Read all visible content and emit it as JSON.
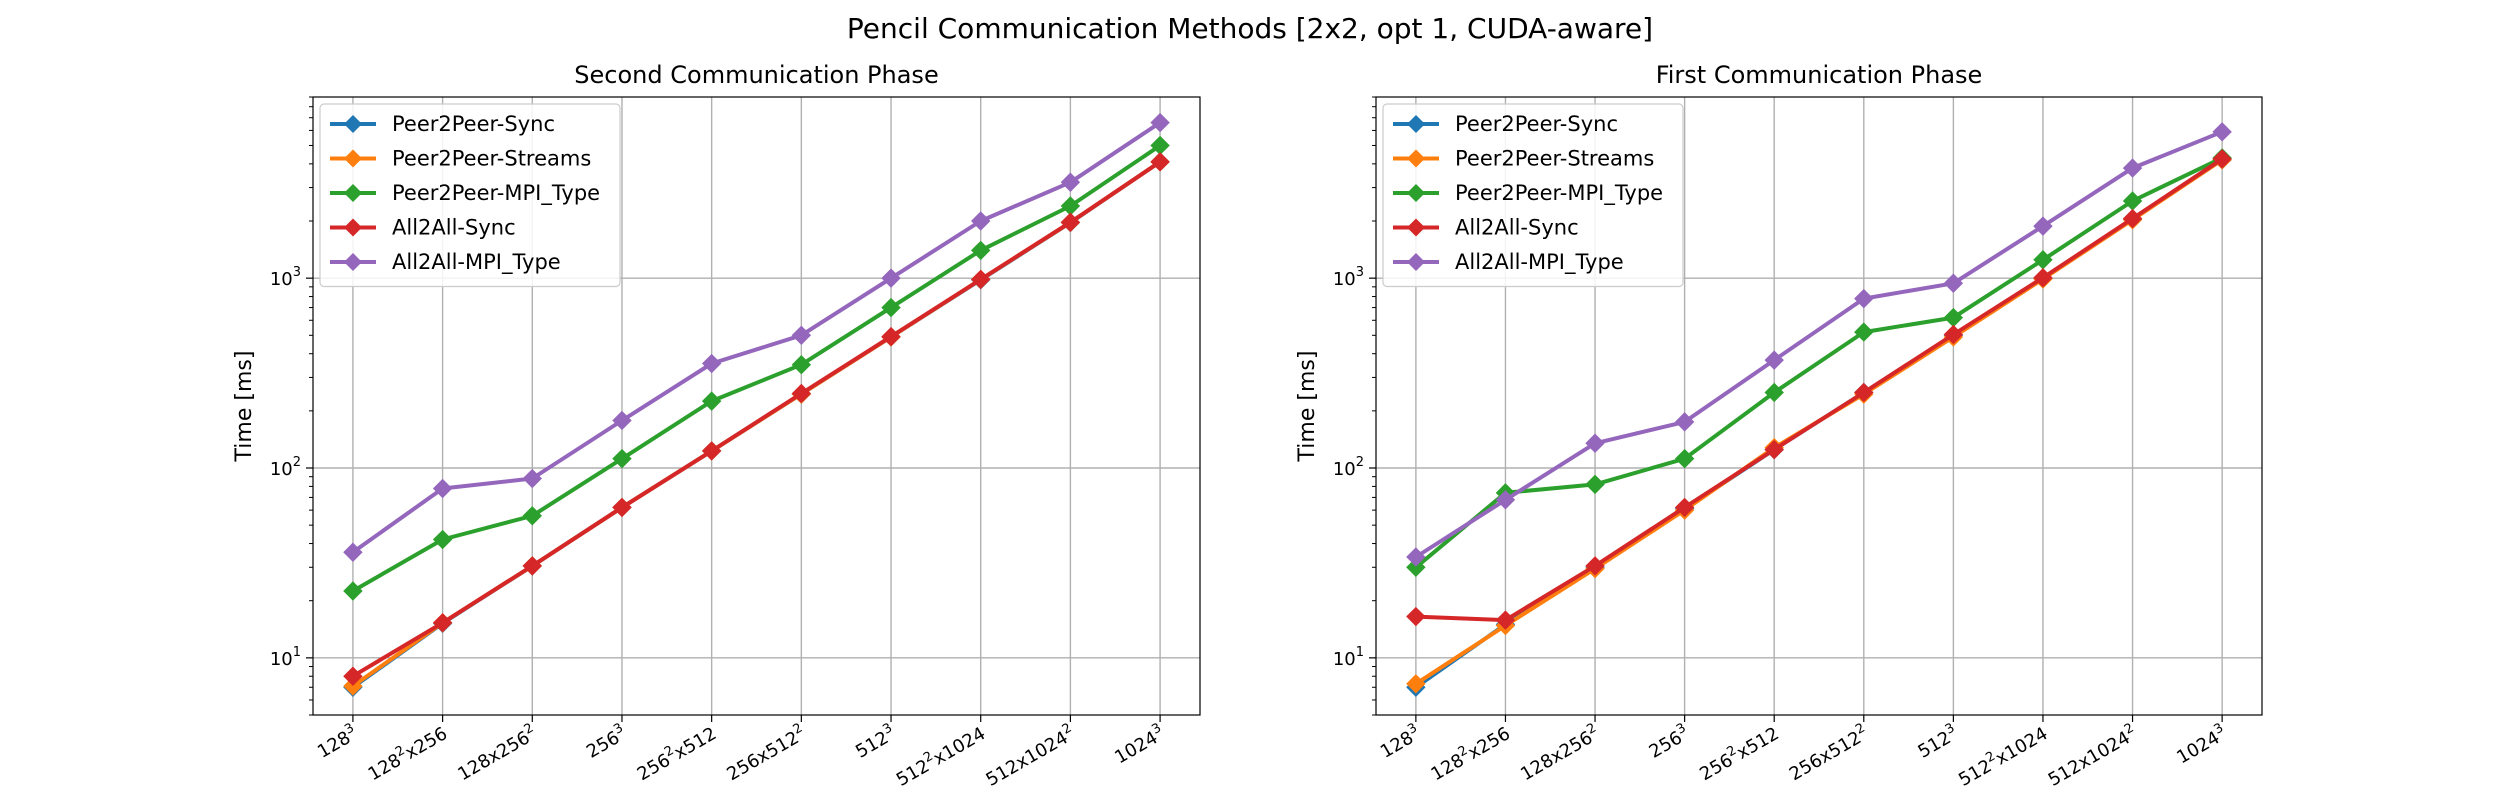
{
  "suptitle": "Pencil Communication Methods [2x2, opt 1, CUDA-aware]",
  "chart_data": [
    {
      "type": "line",
      "title": "Second Communication Phase",
      "ylabel": "Time [ms]",
      "xlabel": "",
      "yscale": "log",
      "ylim": [
        5,
        9000
      ],
      "yticks": [
        10,
        100,
        1000
      ],
      "ytick_labels": [
        [
          "10",
          "1"
        ],
        [
          "10",
          "2"
        ],
        [
          "10",
          "3"
        ]
      ],
      "grid": true,
      "legend": "upper-left",
      "categories": [
        "128^3",
        "128^2x256",
        "128x256^2",
        "256^3",
        "256^2x512",
        "256x512^2",
        "512^3",
        "512^2x1024",
        "512x1024^2",
        "1024^3"
      ],
      "series": [
        {
          "name": "Peer2Peer-Sync",
          "color": "#1f77b4",
          "values": [
            7.0,
            15.2,
            30.5,
            62,
            123,
            245,
            490,
            980,
            1960,
            4100
          ]
        },
        {
          "name": "Peer2Peer-Streams",
          "color": "#ff7f0e",
          "values": [
            7.1,
            15.3,
            30.5,
            62,
            123,
            245,
            490,
            985,
            1965,
            4100
          ]
        },
        {
          "name": "Peer2Peer-MPI_Type",
          "color": "#2ca02c",
          "values": [
            22.5,
            42,
            56,
            112,
            225,
            350,
            700,
            1400,
            2400,
            5000
          ]
        },
        {
          "name": "All2All-Sync",
          "color": "#d62728",
          "values": [
            8.0,
            15.3,
            30.5,
            62,
            123,
            247,
            492,
            985,
            1970,
            4100
          ]
        },
        {
          "name": "All2All-MPI_Type",
          "color": "#9467bd",
          "values": [
            36,
            78,
            88,
            178,
            355,
            500,
            1000,
            2000,
            3200,
            6600
          ]
        }
      ]
    },
    {
      "type": "line",
      "title": "First Communication Phase",
      "ylabel": "Time [ms]",
      "xlabel": "",
      "yscale": "log",
      "ylim": [
        5,
        9000
      ],
      "yticks": [
        10,
        100,
        1000
      ],
      "ytick_labels": [
        [
          "10",
          "1"
        ],
        [
          "10",
          "2"
        ],
        [
          "10",
          "3"
        ]
      ],
      "grid": true,
      "legend": "upper-left",
      "categories": [
        "128^3",
        "128^2x256",
        "128x256^2",
        "256^3",
        "256^2x512",
        "256x512^2",
        "512^3",
        "512^2x1024",
        "512x1024^2",
        "1024^3"
      ],
      "series": [
        {
          "name": "Peer2Peer-Sync",
          "color": "#1f77b4",
          "values": [
            7.0,
            15.0,
            30,
            61,
            125,
            250,
            500,
            1000,
            2050,
            4200
          ]
        },
        {
          "name": "Peer2Peer-Streams",
          "color": "#ff7f0e",
          "values": [
            7.3,
            14.8,
            29.5,
            60,
            128,
            245,
            490,
            990,
            2030,
            4200
          ]
        },
        {
          "name": "Peer2Peer-MPI_Type",
          "color": "#2ca02c",
          "values": [
            30,
            74,
            82,
            112,
            250,
            520,
            620,
            1250,
            2550,
            4300
          ]
        },
        {
          "name": "All2All-Sync",
          "color": "#d62728",
          "values": [
            16.5,
            15.8,
            30.5,
            62,
            125,
            250,
            505,
            1005,
            2060,
            4250
          ]
        },
        {
          "name": "All2All-MPI_Type",
          "color": "#9467bd",
          "values": [
            34,
            68,
            135,
            175,
            370,
            780,
            940,
            1880,
            3800,
            5900
          ]
        }
      ]
    }
  ]
}
